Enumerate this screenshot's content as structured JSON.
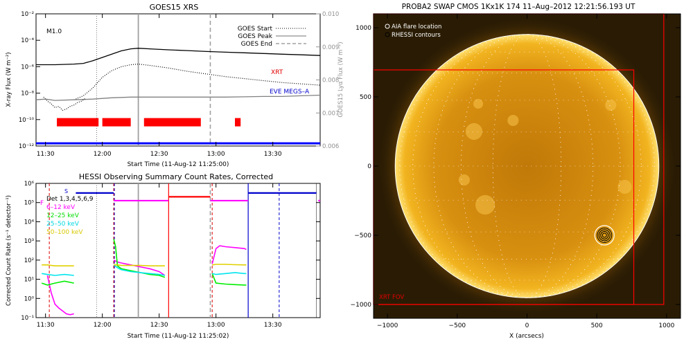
{
  "chart_data": [
    {
      "type": "line",
      "title": "GOES15 XRS",
      "xlabel": "Start Time (11-Aug-12 11:25:00)",
      "ylabel": "X-ray Flux (W m⁻²)",
      "ylabel_right": "GOES15 Lyα Flux (W m⁻²)",
      "x_ticks": [
        "11:30",
        "12:00",
        "12:30",
        "13:00",
        "13:30"
      ],
      "x_tick_minutes": [
        5,
        35,
        65,
        95,
        125
      ],
      "xlim_minutes": [
        0,
        150
      ],
      "y_ticks": [
        "10⁻²",
        "10⁻⁴",
        "10⁻⁶",
        "10⁻⁸",
        "10⁻¹⁰",
        "10⁻¹²"
      ],
      "y_tick_exponents": [
        -2,
        -4,
        -6,
        -8,
        -10,
        -12
      ],
      "ylim_exponent": [
        -12,
        -2
      ],
      "yright_ticks": [
        "0.010",
        "0.009",
        "0.008",
        "0.007",
        "0.006"
      ],
      "yright_values": [
        0.01,
        0.009,
        0.008,
        0.007,
        0.006
      ],
      "ylim_right": [
        0.006,
        0.01
      ],
      "flare_class": "M1.0",
      "legend": {
        "start": "GOES Start",
        "peak": "GOES Peak",
        "end": "GOES End"
      },
      "annotations": {
        "xrt": "XRT",
        "eve": "EVE MEGS–A"
      },
      "markers_minutes": {
        "start": 32,
        "peak": 54,
        "end": 92
      },
      "series": [
        {
          "key": "long",
          "style": "solid",
          "color": "#000000",
          "x": [
            0,
            10,
            20,
            25,
            30,
            35,
            40,
            45,
            50,
            54,
            60,
            70,
            80,
            90,
            100,
            110,
            120,
            130,
            140,
            150
          ],
          "y": [
            -5.85,
            -5.85,
            -5.8,
            -5.75,
            -5.55,
            -5.3,
            -5.05,
            -4.8,
            -4.65,
            -4.6,
            -4.65,
            -4.72,
            -4.78,
            -4.85,
            -4.9,
            -4.95,
            -5.0,
            -5.05,
            -5.1,
            -5.15
          ]
        },
        {
          "key": "short",
          "style": "dotted",
          "color": "#000000",
          "x": [
            20,
            25,
            30,
            35,
            40,
            45,
            50,
            54,
            60,
            70,
            80,
            90,
            100,
            110,
            120,
            130,
            140,
            150
          ],
          "y": [
            -8.5,
            -8.2,
            -7.6,
            -6.8,
            -6.3,
            -6.0,
            -5.85,
            -5.8,
            -5.9,
            -6.1,
            -6.35,
            -6.55,
            -6.75,
            -6.9,
            -7.05,
            -7.2,
            -7.3,
            -7.4
          ]
        },
        {
          "key": "lya",
          "style": "solid",
          "color": "#808080",
          "x": [
            0,
            5,
            10,
            20,
            30,
            40,
            50,
            60,
            70,
            80,
            90,
            100,
            110,
            120,
            130,
            140,
            150
          ],
          "y": [
            -8.5,
            -8.45,
            -8.55,
            -8.5,
            -8.45,
            -8.35,
            -8.3,
            -8.3,
            -8.3,
            -8.3,
            -8.3,
            -8.3,
            -8.28,
            -8.25,
            -8.25,
            -8.2,
            -8.15
          ]
        },
        {
          "key": "noisy",
          "style": "dotted",
          "color": "#000000",
          "x": [
            4,
            6,
            8,
            10,
            12,
            14,
            16,
            18,
            20,
            22,
            24,
            26
          ],
          "y": [
            -8.3,
            -8.6,
            -8.8,
            -9.1,
            -9.0,
            -9.3,
            -9.2,
            -9.0,
            -8.9,
            -8.7,
            -8.6,
            -8.4
          ]
        }
      ],
      "xrt_bars_minutes": [
        [
          11,
          33
        ],
        [
          35,
          50
        ],
        [
          57,
          87
        ],
        [
          105,
          108
        ]
      ],
      "eve_level_exponent": -11.8,
      "xrt_level_exponent": -10.2
    },
    {
      "type": "line",
      "title": "HESSI Observing Summary Count Rates, Corrected",
      "xlabel": "Start Time (11-Aug-12 11:25:02)",
      "ylabel": "Corrected Count Rate (s⁻¹ detector⁻¹)",
      "x_ticks": [
        "11:30",
        "12:00",
        "12:30",
        "13:00",
        "13:30"
      ],
      "x_tick_minutes": [
        5,
        35,
        65,
        95,
        125
      ],
      "xlim_minutes": [
        0,
        150
      ],
      "y_ticks": [
        "10⁶",
        "10⁵",
        "10⁴",
        "10³",
        "10²",
        "10¹",
        "10⁰",
        "10⁻¹"
      ],
      "y_tick_exponents": [
        6,
        5,
        4,
        3,
        2,
        1,
        0,
        -1
      ],
      "ylim_exponent": [
        -1,
        6
      ],
      "legend_title": "Det 1,3,4,5,6,9",
      "legend_entries": [
        {
          "label": "6–12 keV",
          "color": "#ff00ff"
        },
        {
          "label": "12–25 keV",
          "color": "#00ee00"
        },
        {
          "label": "25–50 keV",
          "color": "#00e5ee"
        },
        {
          "label": "50–100 keV",
          "color": "#e0d000"
        }
      ],
      "mode_labels": {
        "f": "F",
        "s": "S"
      },
      "vlines_minutes": {
        "red_dashed": [
          7,
          41,
          93
        ],
        "blue_dashed": [
          41,
          128
        ],
        "black_dotted": [
          32
        ],
        "gray_solid": [
          54
        ],
        "gray_dashed": [
          92
        ],
        "red_solid": [
          70
        ],
        "blue_solid": [
          112
        ],
        "gray_solid_2": [
          148
        ]
      },
      "series": [
        {
          "key": "lo",
          "color": "#ff00ff",
          "x": [
            6,
            8,
            10,
            12,
            14,
            16,
            18,
            20,
            41,
            43,
            45,
            50,
            55,
            60,
            65,
            68,
            93,
            95,
            97,
            100,
            105,
            110,
            111
          ],
          "y": [
            1.2,
            0.3,
            -0.3,
            -0.5,
            -0.65,
            -0.8,
            -0.85,
            -0.8,
            2.0,
            1.9,
            1.85,
            1.75,
            1.65,
            1.55,
            1.4,
            1.2,
            1.8,
            2.6,
            2.75,
            2.7,
            2.65,
            2.6,
            2.55
          ]
        },
        {
          "key": "mid",
          "color": "#00ee00",
          "x": [
            3,
            6,
            10,
            15,
            20,
            41,
            42,
            43,
            45,
            50,
            55,
            60,
            65,
            68,
            93,
            95,
            100,
            105,
            110,
            111
          ],
          "y": [
            0.8,
            0.7,
            0.8,
            0.9,
            0.8,
            3.1,
            2.7,
            1.7,
            1.55,
            1.45,
            1.35,
            1.25,
            1.2,
            1.1,
            1.3,
            0.8,
            0.75,
            0.72,
            0.7,
            0.7
          ]
        },
        {
          "key": "hi",
          "color": "#00e5ee",
          "x": [
            3,
            6,
            10,
            15,
            20,
            41,
            43,
            45,
            50,
            55,
            60,
            65,
            68,
            93,
            95,
            100,
            105,
            110,
            111
          ],
          "y": [
            1.3,
            1.25,
            1.2,
            1.25,
            1.2,
            1.75,
            1.6,
            1.5,
            1.4,
            1.35,
            1.3,
            1.25,
            1.2,
            1.3,
            1.25,
            1.3,
            1.35,
            1.3,
            1.3
          ]
        },
        {
          "key": "top",
          "color": "#e0d000",
          "x": [
            3,
            6,
            10,
            15,
            20,
            41,
            43,
            45,
            50,
            55,
            60,
            65,
            68,
            93,
            95,
            100,
            105,
            110,
            111
          ],
          "y": [
            1.75,
            1.75,
            1.7,
            1.7,
            1.7,
            1.75,
            1.75,
            1.72,
            1.72,
            1.72,
            1.7,
            1.7,
            1.7,
            1.75,
            1.78,
            1.78,
            1.76,
            1.75,
            1.75
          ]
        }
      ],
      "attenuator_segments": [
        {
          "color": "#0000cc",
          "x": [
            21,
            41
          ],
          "y": 5.5
        },
        {
          "color": "#ff00ff",
          "x": [
            41,
            70
          ],
          "y": 5.1
        },
        {
          "color": "#ff0000",
          "x": [
            70,
            92
          ],
          "y": 5.3
        },
        {
          "color": "#ff00ff",
          "x": [
            92,
            112
          ],
          "y": 5.1
        },
        {
          "color": "#0000cc",
          "x": [
            112,
            148
          ],
          "y": 5.5
        },
        {
          "color": "#ff00ff",
          "x": [
            149,
            150
          ],
          "y": 5.1
        }
      ]
    },
    {
      "type": "image",
      "title": "PROBA2 SWAP CMOS 1Kx1K 174  11–Aug–2012 12:21:56.193 UT",
      "xlabel": "X (arcsecs)",
      "x_ticks": [
        "−1000",
        "−500",
        "0",
        "500",
        "1000"
      ],
      "x_tick_values": [
        -1000,
        -500,
        0,
        500,
        1000
      ],
      "y_ticks": [
        "1000",
        "500",
        "0",
        "−500",
        "−1000"
      ],
      "y_tick_values": [
        1000,
        500,
        0,
        -500,
        -1000
      ],
      "xlim": [
        -1100,
        1100
      ],
      "ylim": [
        -1100,
        1100
      ],
      "legend": [
        "AIA flare location",
        "RHESSI contours"
      ],
      "fov_label": "XRT FOV",
      "solar_radius_arcsec": 945,
      "flare_location_arcsec": [
        555,
        -500
      ],
      "fov_box_1": [
        -1100,
        -1000,
        765,
        695
      ],
      "fov_box_2": [
        -1100,
        -1000,
        980,
        1100
      ],
      "solar_disk_color": "#e7a010"
    }
  ]
}
